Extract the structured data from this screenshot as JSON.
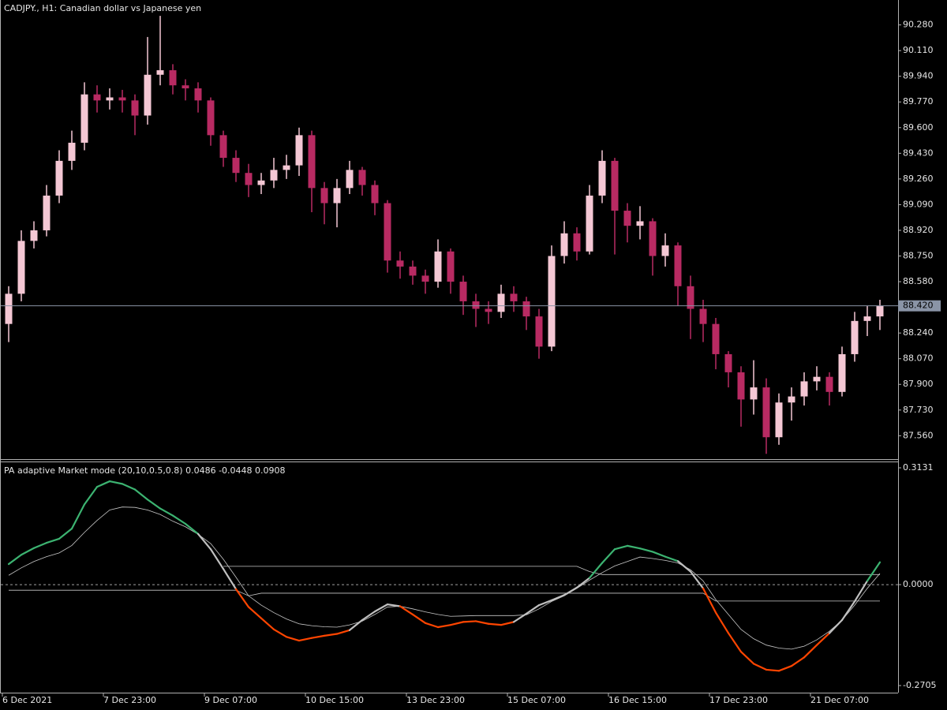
{
  "chart_data": [
    {
      "type": "candlestick",
      "title": "CADJPY., H1:  Canadian dollar vs Japanese yen",
      "categories": [
        "6 Dec 2021",
        null,
        null,
        null,
        null,
        null,
        null,
        null,
        "7 Dec 23:00",
        null,
        null,
        null,
        null,
        null,
        null,
        null,
        "9 Dec 07:00",
        null,
        null,
        null,
        null,
        null,
        null,
        null,
        "10 Dec 15:00",
        null,
        null,
        null,
        null,
        null,
        null,
        null,
        "13 Dec 23:00",
        null,
        null,
        null,
        null,
        null,
        null,
        null,
        "15 Dec 07:00",
        null,
        null,
        null,
        null,
        null,
        null,
        null,
        "16 Dec 15:00",
        null,
        null,
        null,
        null,
        null,
        null,
        null,
        "17 Dec 23:00",
        null,
        null,
        null,
        null,
        null,
        null,
        null,
        "21 Dec 07:00",
        null,
        null,
        null,
        null,
        null
      ],
      "open": [
        88.3,
        88.5,
        88.85,
        88.92,
        89.15,
        89.38,
        89.5,
        89.82,
        89.78,
        89.8,
        89.78,
        89.68,
        89.95,
        89.98,
        89.88,
        89.86,
        89.78,
        89.55,
        89.4,
        89.3,
        89.22,
        89.25,
        89.32,
        89.35,
        89.55,
        89.2,
        89.1,
        89.2,
        89.32,
        89.22,
        89.1,
        88.72,
        88.68,
        88.62,
        88.58,
        88.78,
        88.58,
        88.45,
        88.4,
        88.38,
        88.5,
        88.45,
        88.35,
        88.15,
        88.75,
        88.9,
        88.78,
        89.15,
        89.38,
        89.05,
        88.95,
        88.98,
        88.75,
        88.82,
        88.55,
        88.4,
        88.3,
        88.1,
        87.98,
        87.8,
        87.88,
        87.55,
        87.78,
        87.82,
        87.92,
        87.95,
        87.85,
        88.1,
        88.32,
        88.35
      ],
      "high": [
        88.55,
        88.92,
        88.98,
        89.22,
        89.45,
        89.58,
        89.9,
        89.88,
        89.86,
        89.85,
        89.82,
        90.2,
        90.34,
        90.02,
        89.92,
        89.9,
        89.8,
        89.58,
        89.45,
        89.36,
        89.3,
        89.4,
        89.42,
        89.6,
        89.58,
        89.24,
        89.26,
        89.38,
        89.34,
        89.25,
        89.12,
        88.78,
        88.72,
        88.66,
        88.86,
        88.8,
        88.62,
        88.5,
        88.45,
        88.56,
        88.55,
        88.48,
        88.4,
        88.82,
        88.98,
        88.94,
        89.22,
        89.45,
        89.4,
        89.1,
        89.08,
        89.0,
        88.9,
        88.84,
        88.62,
        88.46,
        88.34,
        88.12,
        88.02,
        88.06,
        87.94,
        87.84,
        87.88,
        87.98,
        88.02,
        87.98,
        88.15,
        88.38,
        88.42,
        88.46
      ],
      "low": [
        88.18,
        88.45,
        88.8,
        88.88,
        89.1,
        89.32,
        89.45,
        89.7,
        89.72,
        89.7,
        89.55,
        89.62,
        89.88,
        89.82,
        89.78,
        89.7,
        89.48,
        89.34,
        89.24,
        89.14,
        89.16,
        89.2,
        89.26,
        89.28,
        89.04,
        88.96,
        88.94,
        89.16,
        89.15,
        89.02,
        88.64,
        88.6,
        88.56,
        88.5,
        88.54,
        88.5,
        88.36,
        88.28,
        88.3,
        88.34,
        88.38,
        88.26,
        88.07,
        88.12,
        88.7,
        88.72,
        88.76,
        89.1,
        88.76,
        88.84,
        88.86,
        88.62,
        88.68,
        88.42,
        88.2,
        88.18,
        88.0,
        87.88,
        87.62,
        87.7,
        87.44,
        87.5,
        87.66,
        87.76,
        87.86,
        87.76,
        87.82,
        88.05,
        88.22,
        88.26
      ],
      "close": [
        88.5,
        88.85,
        88.92,
        89.15,
        89.38,
        89.5,
        89.82,
        89.78,
        89.8,
        89.78,
        89.68,
        89.95,
        89.98,
        89.88,
        89.86,
        89.78,
        89.55,
        89.4,
        89.3,
        89.22,
        89.25,
        89.32,
        89.35,
        89.55,
        89.2,
        89.1,
        89.2,
        89.32,
        89.22,
        89.1,
        88.72,
        88.68,
        88.62,
        88.58,
        88.78,
        88.58,
        88.45,
        88.4,
        88.38,
        88.5,
        88.45,
        88.35,
        88.15,
        88.75,
        88.9,
        88.78,
        89.15,
        89.38,
        89.05,
        88.95,
        88.98,
        88.75,
        88.82,
        88.55,
        88.4,
        88.3,
        88.1,
        87.98,
        87.8,
        87.88,
        87.55,
        87.78,
        87.82,
        87.92,
        87.95,
        87.85,
        88.1,
        88.32,
        88.35,
        88.42
      ],
      "up_color": "#f4c7d4",
      "down_color": "#b82a62",
      "ylim": [
        87.405,
        90.445
      ],
      "yticks": [
        {
          "value": 90.28,
          "label": "90.280"
        },
        {
          "value": 90.11,
          "label": "90.110"
        },
        {
          "value": 89.94,
          "label": "89.940"
        },
        {
          "value": 89.77,
          "label": "89.770"
        },
        {
          "value": 89.6,
          "label": "89.600"
        },
        {
          "value": 89.43,
          "label": "89.430"
        },
        {
          "value": 89.26,
          "label": "89.260"
        },
        {
          "value": 89.09,
          "label": "89.090"
        },
        {
          "value": 88.92,
          "label": "88.920"
        },
        {
          "value": 88.75,
          "label": "88.750"
        },
        {
          "value": 88.58,
          "label": "88.580"
        },
        {
          "value": 88.24,
          "label": "88.240"
        },
        {
          "value": 88.07,
          "label": "88.070"
        },
        {
          "value": 87.9,
          "label": "87.900"
        },
        {
          "value": 87.73,
          "label": "87.730"
        },
        {
          "value": 87.56,
          "label": "87.560"
        }
      ],
      "current_price": {
        "value": 88.42,
        "label": "88.420"
      }
    },
    {
      "type": "line",
      "title": "PA adaptive Market mode (20,10,0.5,0.8) 0.0486 -0.0448 0.0908",
      "main": {
        "values": [
          0.055,
          0.08,
          0.098,
          0.112,
          0.123,
          0.15,
          0.215,
          0.262,
          0.277,
          0.27,
          0.255,
          0.228,
          0.204,
          0.185,
          0.163,
          0.136,
          0.095,
          0.042,
          -0.012,
          -0.06,
          -0.09,
          -0.12,
          -0.14,
          -0.15,
          -0.143,
          -0.137,
          -0.132,
          -0.122,
          -0.095,
          -0.072,
          -0.053,
          -0.058,
          -0.08,
          -0.103,
          -0.114,
          -0.108,
          -0.1,
          -0.098,
          -0.105,
          -0.108,
          -0.1,
          -0.078,
          -0.055,
          -0.042,
          -0.028,
          -0.008,
          0.018,
          0.058,
          0.095,
          0.104,
          0.097,
          0.088,
          0.075,
          0.063,
          0.035,
          -0.01,
          -0.075,
          -0.13,
          -0.18,
          -0.212,
          -0.228,
          -0.231,
          -0.218,
          -0.195,
          -0.162,
          -0.13,
          -0.095,
          -0.045,
          0.01,
          0.06
        ],
        "up_color": "#3cb371",
        "down_color": "#ff4500",
        "neutral_color": "#c0c0c0"
      },
      "series": [
        {
          "color": "#c8c8c8",
          "values": [
            0.025,
            0.045,
            0.062,
            0.075,
            0.085,
            0.105,
            0.14,
            0.172,
            0.2,
            0.208,
            0.207,
            0.2,
            0.188,
            0.17,
            0.155,
            0.135,
            0.11,
            0.068,
            0.02,
            -0.03,
            -0.055,
            -0.075,
            -0.092,
            -0.105,
            -0.11,
            -0.113,
            -0.114,
            -0.108,
            -0.098,
            -0.08,
            -0.06,
            -0.058,
            -0.065,
            -0.073,
            -0.08,
            -0.085,
            -0.084,
            -0.083,
            -0.083,
            -0.083,
            -0.083,
            -0.081,
            -0.065,
            -0.045,
            -0.03,
            -0.01,
            0.012,
            0.032,
            0.05,
            0.062,
            0.074,
            0.07,
            0.065,
            0.058,
            0.04,
            0.01,
            -0.04,
            -0.08,
            -0.12,
            -0.145,
            -0.162,
            -0.17,
            -0.173,
            -0.165,
            -0.148,
            -0.125,
            -0.095,
            -0.055,
            -0.01,
            0.03
          ]
        },
        {
          "color": "#c8c8c8",
          "values": [
            null,
            null,
            null,
            null,
            null,
            null,
            null,
            null,
            null,
            null,
            null,
            null,
            null,
            null,
            null,
            null,
            null,
            0.049,
            0.049,
            0.049,
            0.049,
            0.049,
            0.049,
            0.049,
            0.049,
            0.049,
            0.049,
            0.049,
            0.049,
            0.049,
            0.049,
            0.049,
            0.049,
            0.049,
            0.049,
            0.049,
            0.049,
            0.049,
            0.049,
            0.049,
            0.049,
            0.049,
            0.049,
            0.049,
            0.049,
            0.049,
            0.035,
            0.027,
            0.027,
            0.027,
            0.027,
            0.027,
            0.027,
            0.027,
            0.027,
            0.027,
            0.027,
            0.027,
            0.027,
            0.027,
            0.027,
            0.027,
            0.027,
            0.027,
            0.027,
            0.027,
            0.027,
            0.027,
            0.027,
            0.027
          ]
        },
        {
          "color": "#c8c8c8",
          "values": [
            -0.015,
            -0.015,
            -0.015,
            -0.015,
            -0.015,
            -0.015,
            -0.015,
            -0.015,
            -0.015,
            -0.015,
            -0.015,
            -0.015,
            -0.015,
            -0.015,
            -0.015,
            -0.015,
            -0.015,
            -0.015,
            -0.015,
            -0.03,
            -0.023,
            -0.023,
            -0.023,
            -0.023,
            -0.023,
            -0.023,
            -0.023,
            -0.023,
            -0.023,
            -0.023,
            -0.023,
            -0.023,
            -0.023,
            -0.023,
            -0.023,
            -0.023,
            -0.023,
            -0.023,
            -0.023,
            -0.023,
            -0.023,
            -0.023,
            -0.023,
            -0.023,
            -0.023,
            -0.023,
            -0.023,
            -0.023,
            -0.023,
            -0.023,
            -0.023,
            -0.023,
            -0.023,
            -0.023,
            -0.023,
            -0.023,
            -0.044,
            -0.044,
            -0.044,
            -0.044,
            -0.044,
            -0.044,
            -0.044,
            -0.044,
            -0.044,
            -0.044,
            -0.044,
            -0.044,
            -0.044,
            -0.044
          ]
        }
      ],
      "ylim": [
        -0.2895,
        0.33
      ],
      "yticks": [
        0.3131,
        {
          "value": 0,
          "label": "0.0000"
        },
        -0.2705
      ]
    }
  ]
}
